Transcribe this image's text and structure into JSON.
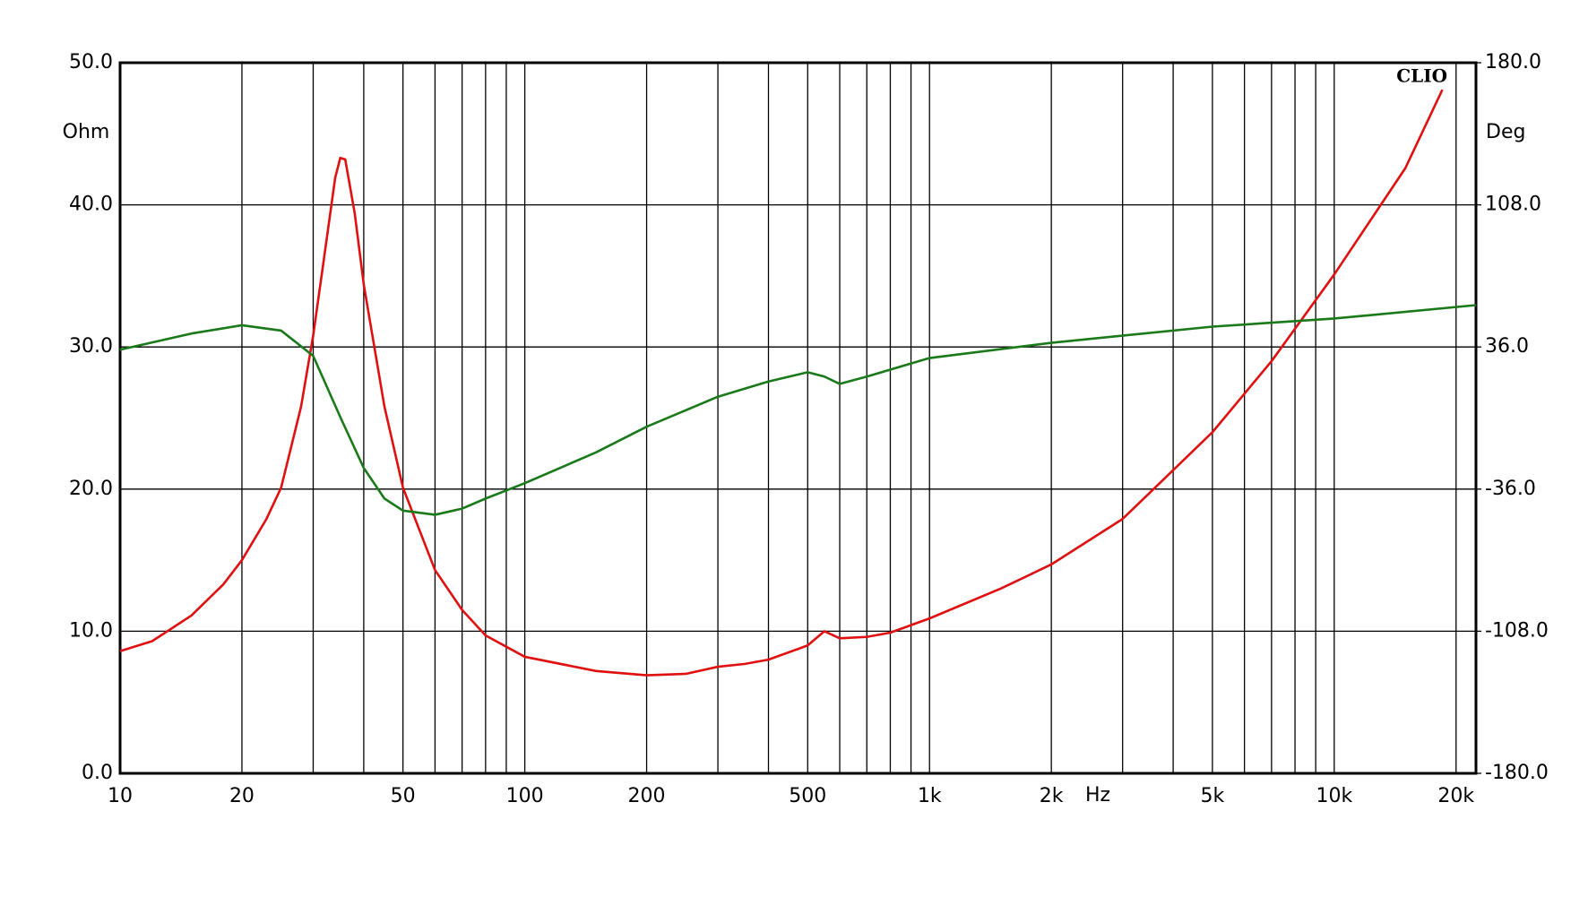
{
  "chart_data": {
    "type": "line",
    "xlog": true,
    "grid": true,
    "y_label": "Ohm",
    "y2_label": "Deg",
    "x_label": "Hz",
    "brand": "CLIO",
    "xlim": [
      10,
      22400
    ],
    "xticks": [
      10,
      20,
      50,
      100,
      200,
      500,
      {
        "value": 1000,
        "label": "1k"
      },
      {
        "value": 2000,
        "label": "2k"
      },
      {
        "value": 5000,
        "label": "5k"
      },
      {
        "value": 10000,
        "label": "10k"
      },
      {
        "value": 20000,
        "label": "20k"
      }
    ],
    "xminor": [
      30,
      40,
      60,
      70,
      80,
      90,
      300,
      400,
      600,
      700,
      800,
      900,
      3000,
      4000,
      6000,
      7000,
      8000,
      9000
    ],
    "ylim": [
      0,
      50
    ],
    "yticks": [
      {
        "value": 0,
        "label": "0.0"
      },
      {
        "value": 10,
        "label": "10.0"
      },
      {
        "value": 20,
        "label": "20.0"
      },
      {
        "value": 30,
        "label": "30.0"
      },
      {
        "value": 40,
        "label": "40.0"
      },
      {
        "value": 50,
        "label": "50.0"
      }
    ],
    "y2lim": [
      -180,
      180
    ],
    "y2ticks": [
      {
        "value": -180,
        "label": "-180.0"
      },
      {
        "value": -108,
        "label": "-108.0"
      },
      {
        "value": -36,
        "label": "-36.0"
      },
      {
        "value": 36,
        "label": "36.0"
      },
      {
        "value": 108,
        "label": "108.0"
      },
      {
        "value": 180,
        "label": "180.0"
      }
    ],
    "series": [
      {
        "color": "#e01010",
        "axis": "y",
        "x": [
          10,
          12,
          15,
          18,
          20,
          23,
          25,
          28,
          30,
          32,
          34,
          35,
          36,
          38,
          40,
          45,
          50,
          60,
          70,
          80,
          100,
          150,
          200,
          250,
          300,
          350,
          400,
          500,
          550,
          600,
          700,
          800,
          1000,
          1500,
          2000,
          3000,
          5000,
          7000,
          10000,
          15000,
          18500
        ],
        "values": [
          8.6,
          9.3,
          11.1,
          13.3,
          15.0,
          17.9,
          20.1,
          25.8,
          30.8,
          36.5,
          41.9,
          43.3,
          43.2,
          39.4,
          34.4,
          25.8,
          20.1,
          14.3,
          11.5,
          9.7,
          8.2,
          7.2,
          6.9,
          7.0,
          7.5,
          7.7,
          8.0,
          9.0,
          10.0,
          9.5,
          9.6,
          9.9,
          10.9,
          13.0,
          14.7,
          17.9,
          24.0,
          29.0,
          35.1,
          42.6,
          48.1
        ]
      },
      {
        "color": "#1a7a1a",
        "axis": "y2",
        "x": [
          10,
          15,
          20,
          25,
          30,
          35,
          40,
          45,
          50,
          60,
          70,
          80,
          100,
          150,
          200,
          300,
          400,
          500,
          550,
          600,
          700,
          1000,
          2000,
          5000,
          10000,
          22400
        ],
        "values": [
          34.6,
          42.8,
          47.0,
          44.3,
          31.5,
          0.5,
          -25.3,
          -40.8,
          -46.9,
          -49.0,
          -45.9,
          -40.8,
          -33.0,
          -17.4,
          -4.4,
          10.8,
          18.5,
          23.2,
          21.0,
          17.3,
          21.0,
          30.4,
          38.1,
          46.3,
          50.4,
          57.2
        ]
      }
    ]
  }
}
